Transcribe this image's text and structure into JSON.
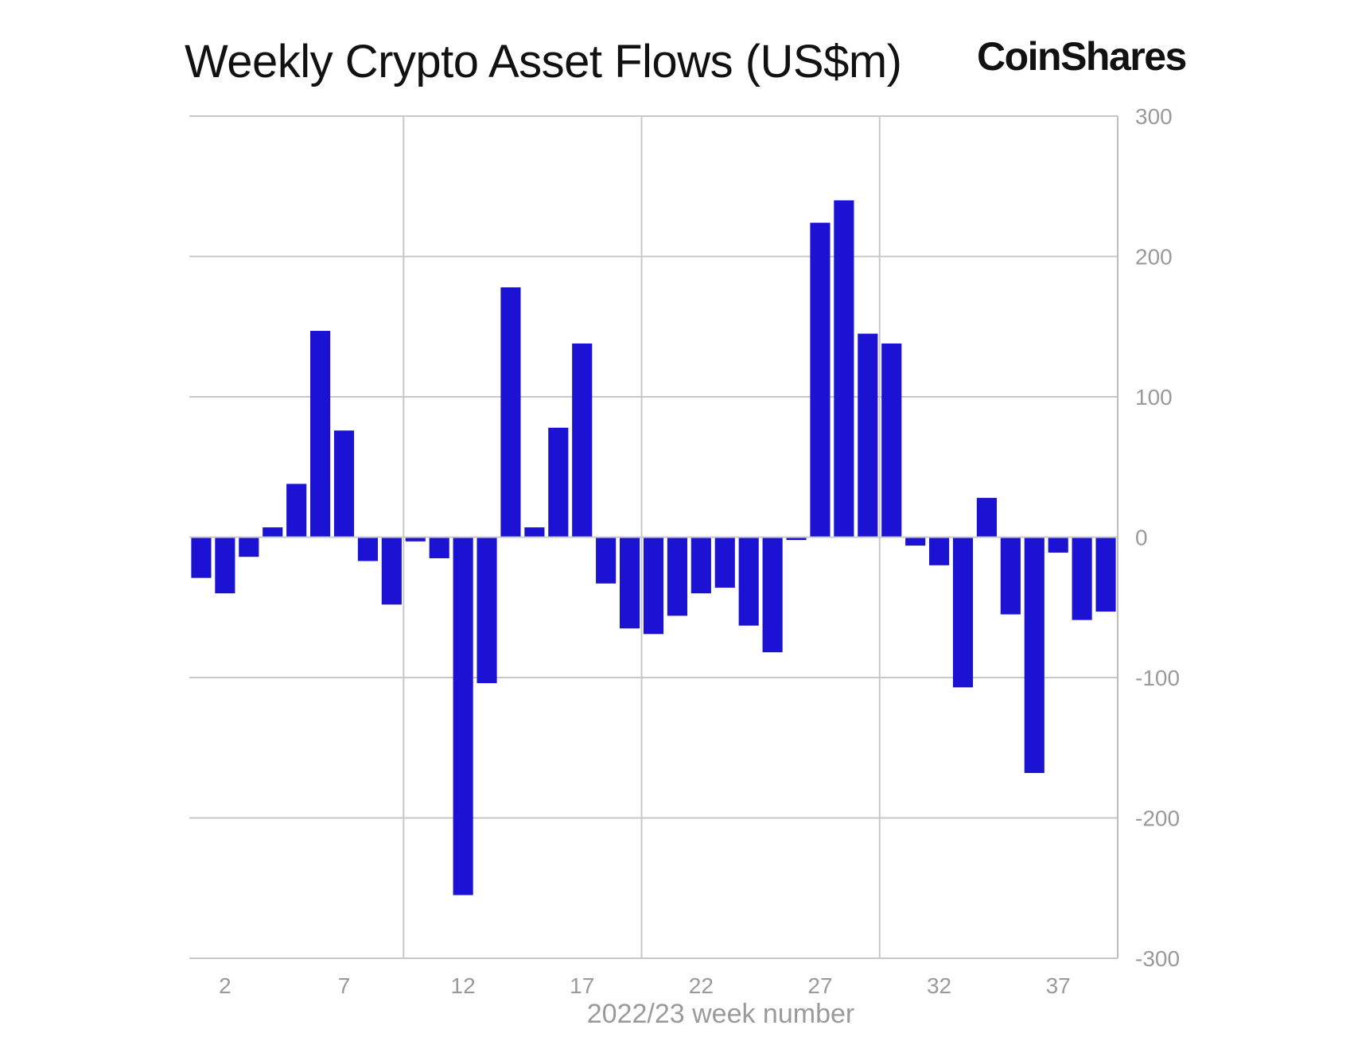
{
  "chart_data": {
    "type": "bar",
    "title": "Weekly Crypto Asset Flows (US$m)",
    "brand": "CoinShares",
    "xlabel": "2022/23 week number",
    "ylabel": "",
    "x": [
      1,
      2,
      3,
      4,
      5,
      6,
      7,
      8,
      9,
      10,
      11,
      12,
      13,
      14,
      15,
      16,
      17,
      18,
      19,
      20,
      21,
      22,
      23,
      24,
      25,
      26,
      27,
      28,
      29,
      30,
      31,
      32,
      33,
      34,
      35,
      36,
      37,
      38,
      39
    ],
    "values": [
      -29,
      -40,
      -14,
      7,
      38,
      147,
      76,
      -17,
      -48,
      -3,
      -15,
      -255,
      -104,
      178,
      7,
      78,
      138,
      -33,
      -65,
      -69,
      -56,
      -40,
      -36,
      -63,
      -82,
      -2,
      224,
      240,
      145,
      138,
      -6,
      -20,
      -107,
      28,
      -55,
      -168,
      -11,
      -59,
      -53
    ],
    "ylim": [
      -300,
      300
    ],
    "y_ticks": [
      300,
      200,
      100,
      0,
      -100,
      -200,
      -300
    ],
    "y_tick_labels": [
      "300",
      "200",
      "100",
      "0",
      "-100",
      "-200",
      "-300"
    ],
    "x_tick_values": [
      2,
      7,
      12,
      17,
      22,
      27,
      32,
      37
    ],
    "x_tick_labels": [
      "2",
      "7",
      "12",
      "17",
      "22",
      "27",
      "32",
      "37"
    ],
    "grid": true,
    "y_axis_position": "right",
    "colors": {
      "bar": "#1c12d3",
      "grid": "#c8c8c8",
      "tick_text": "#9a9a9a",
      "axis": "#bdbdbd"
    }
  }
}
